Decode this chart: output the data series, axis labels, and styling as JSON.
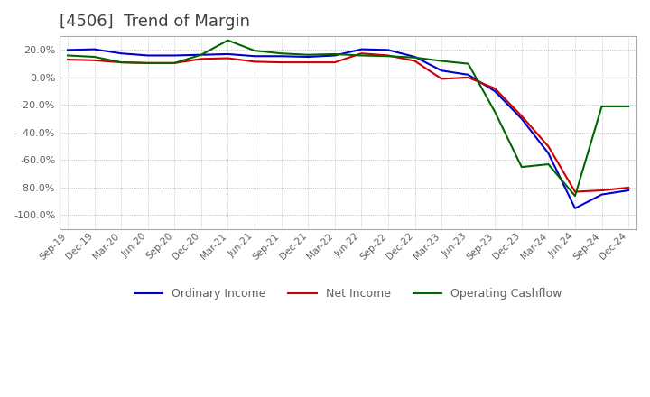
{
  "title": "[4506]  Trend of Margin",
  "title_color": "#404040",
  "title_fontsize": 13,
  "x_labels": [
    "Sep-19",
    "Dec-19",
    "Mar-20",
    "Jun-20",
    "Sep-20",
    "Dec-20",
    "Mar-21",
    "Jun-21",
    "Sep-21",
    "Dec-21",
    "Mar-22",
    "Jun-22",
    "Sep-22",
    "Dec-22",
    "Mar-23",
    "Jun-23",
    "Sep-23",
    "Dec-23",
    "Mar-24",
    "Jun-24",
    "Sep-24",
    "Dec-24"
  ],
  "ylim": [
    -110,
    30
  ],
  "yticks": [
    20,
    0,
    -20,
    -40,
    -60,
    -80,
    -100
  ],
  "background_color": "#ffffff",
  "grid_color": "#aaaaaa",
  "ordinary_income": [
    20.0,
    20.5,
    17.5,
    16.0,
    16.0,
    16.5,
    17.0,
    15.5,
    15.5,
    15.0,
    16.0,
    20.5,
    20.0,
    15.0,
    5.0,
    2.0,
    -10.0,
    -30.0,
    -55.0,
    -95.0,
    -85.0,
    -82.0
  ],
  "net_income": [
    13.0,
    12.5,
    11.0,
    10.5,
    10.5,
    13.5,
    14.0,
    11.5,
    11.0,
    11.0,
    11.0,
    17.5,
    16.0,
    12.0,
    -1.0,
    0.0,
    -8.0,
    -28.0,
    -50.0,
    -83.0,
    -82.0,
    -80.0
  ],
  "operating_cashflow": [
    16.0,
    15.0,
    11.0,
    10.5,
    10.5,
    16.5,
    27.0,
    19.5,
    17.5,
    16.5,
    17.0,
    16.0,
    15.5,
    14.5,
    12.0,
    10.0,
    -25.0,
    -65.0,
    -63.0,
    -86.0,
    -21.0,
    -21.0
  ],
  "ordinary_color": "#0000cc",
  "net_income_color": "#cc0000",
  "operating_cashflow_color": "#006600",
  "line_width": 1.5,
  "legend_labels": [
    "Ordinary Income",
    "Net Income",
    "Operating Cashflow"
  ],
  "legend_fontsize": 9
}
